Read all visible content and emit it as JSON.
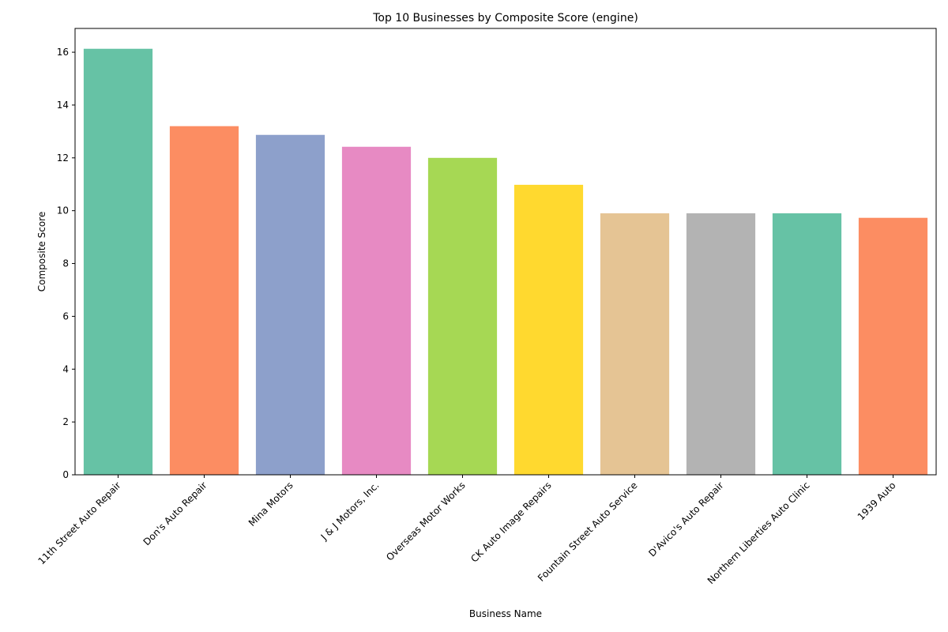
{
  "chart_data": {
    "type": "bar",
    "title": "Top 10 Businesses by Composite Score (engine)",
    "xlabel": "Business Name",
    "ylabel": "Composite Score",
    "categories": [
      "11th Street Auto Repair",
      "Don's Auto Repair",
      "Mina Motors",
      "J & J Motors, Inc.",
      "Overseas Motor Works",
      "CK Auto Image Repairs",
      "Fountain Street Auto Service",
      "D'Avico's Auto Repair",
      "Northern Liberties Auto Clinic",
      "1939 Auto"
    ],
    "values": [
      16.13,
      13.2,
      12.87,
      12.42,
      12.0,
      10.98,
      9.9,
      9.9,
      9.9,
      9.73
    ],
    "colors": [
      "#66c2a5",
      "#fc8d62",
      "#8da0cb",
      "#e78ac3",
      "#a6d854",
      "#ffd92f",
      "#e5c494",
      "#b3b3b3",
      "#66c2a5",
      "#fc8d62"
    ],
    "ylim": [
      0,
      16.9
    ],
    "yticks": [
      0,
      2,
      4,
      6,
      8,
      10,
      12,
      14,
      16
    ],
    "grid": false,
    "legend": "none"
  }
}
